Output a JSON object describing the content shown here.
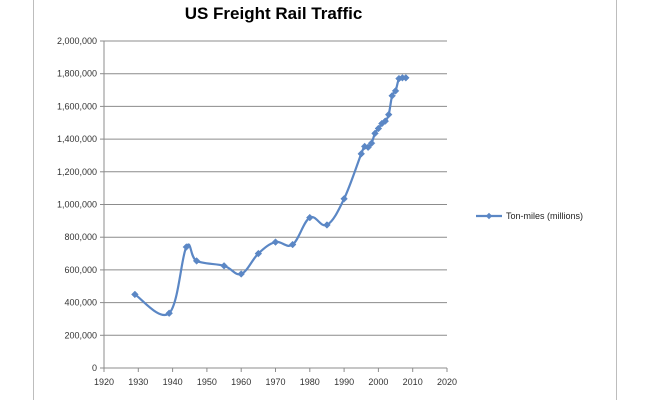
{
  "chart_data": {
    "type": "line",
    "title": "US Freight Rail Traffic",
    "xlabel": "",
    "ylabel": "",
    "xlim": [
      1920,
      2020
    ],
    "ylim": [
      0,
      2000000
    ],
    "x_ticks": [
      "1920",
      "1930",
      "1940",
      "1950",
      "1960",
      "1970",
      "1980",
      "1990",
      "2000",
      "2010",
      "2020"
    ],
    "y_ticks": [
      "0",
      "200,000",
      "400,000",
      "600,000",
      "800,000",
      "1,000,000",
      "1,200,000",
      "1,400,000",
      "1,600,000",
      "1,800,000",
      "2,000,000"
    ],
    "grid": "horizontal",
    "legend_position": "right",
    "series_color": "#5b87c5",
    "series": [
      {
        "name": "Ton-miles (millions)",
        "points": [
          [
            1929,
            450000
          ],
          [
            1939,
            335000
          ],
          [
            1944,
            740000
          ],
          [
            1947,
            655000
          ],
          [
            1955,
            625000
          ],
          [
            1960,
            575000
          ],
          [
            1965,
            700000
          ],
          [
            1970,
            770000
          ],
          [
            1975,
            755000
          ],
          [
            1980,
            920000
          ],
          [
            1985,
            875000
          ],
          [
            1990,
            1035000
          ],
          [
            1995,
            1310000
          ],
          [
            1996,
            1355000
          ],
          [
            1997,
            1350000
          ],
          [
            1998,
            1375000
          ],
          [
            1999,
            1435000
          ],
          [
            2000,
            1465000
          ],
          [
            2001,
            1495000
          ],
          [
            2002,
            1510000
          ],
          [
            2003,
            1550000
          ],
          [
            2004,
            1665000
          ],
          [
            2005,
            1695000
          ],
          [
            2006,
            1770000
          ],
          [
            2007,
            1775000
          ],
          [
            2008,
            1775000
          ]
        ]
      }
    ]
  }
}
